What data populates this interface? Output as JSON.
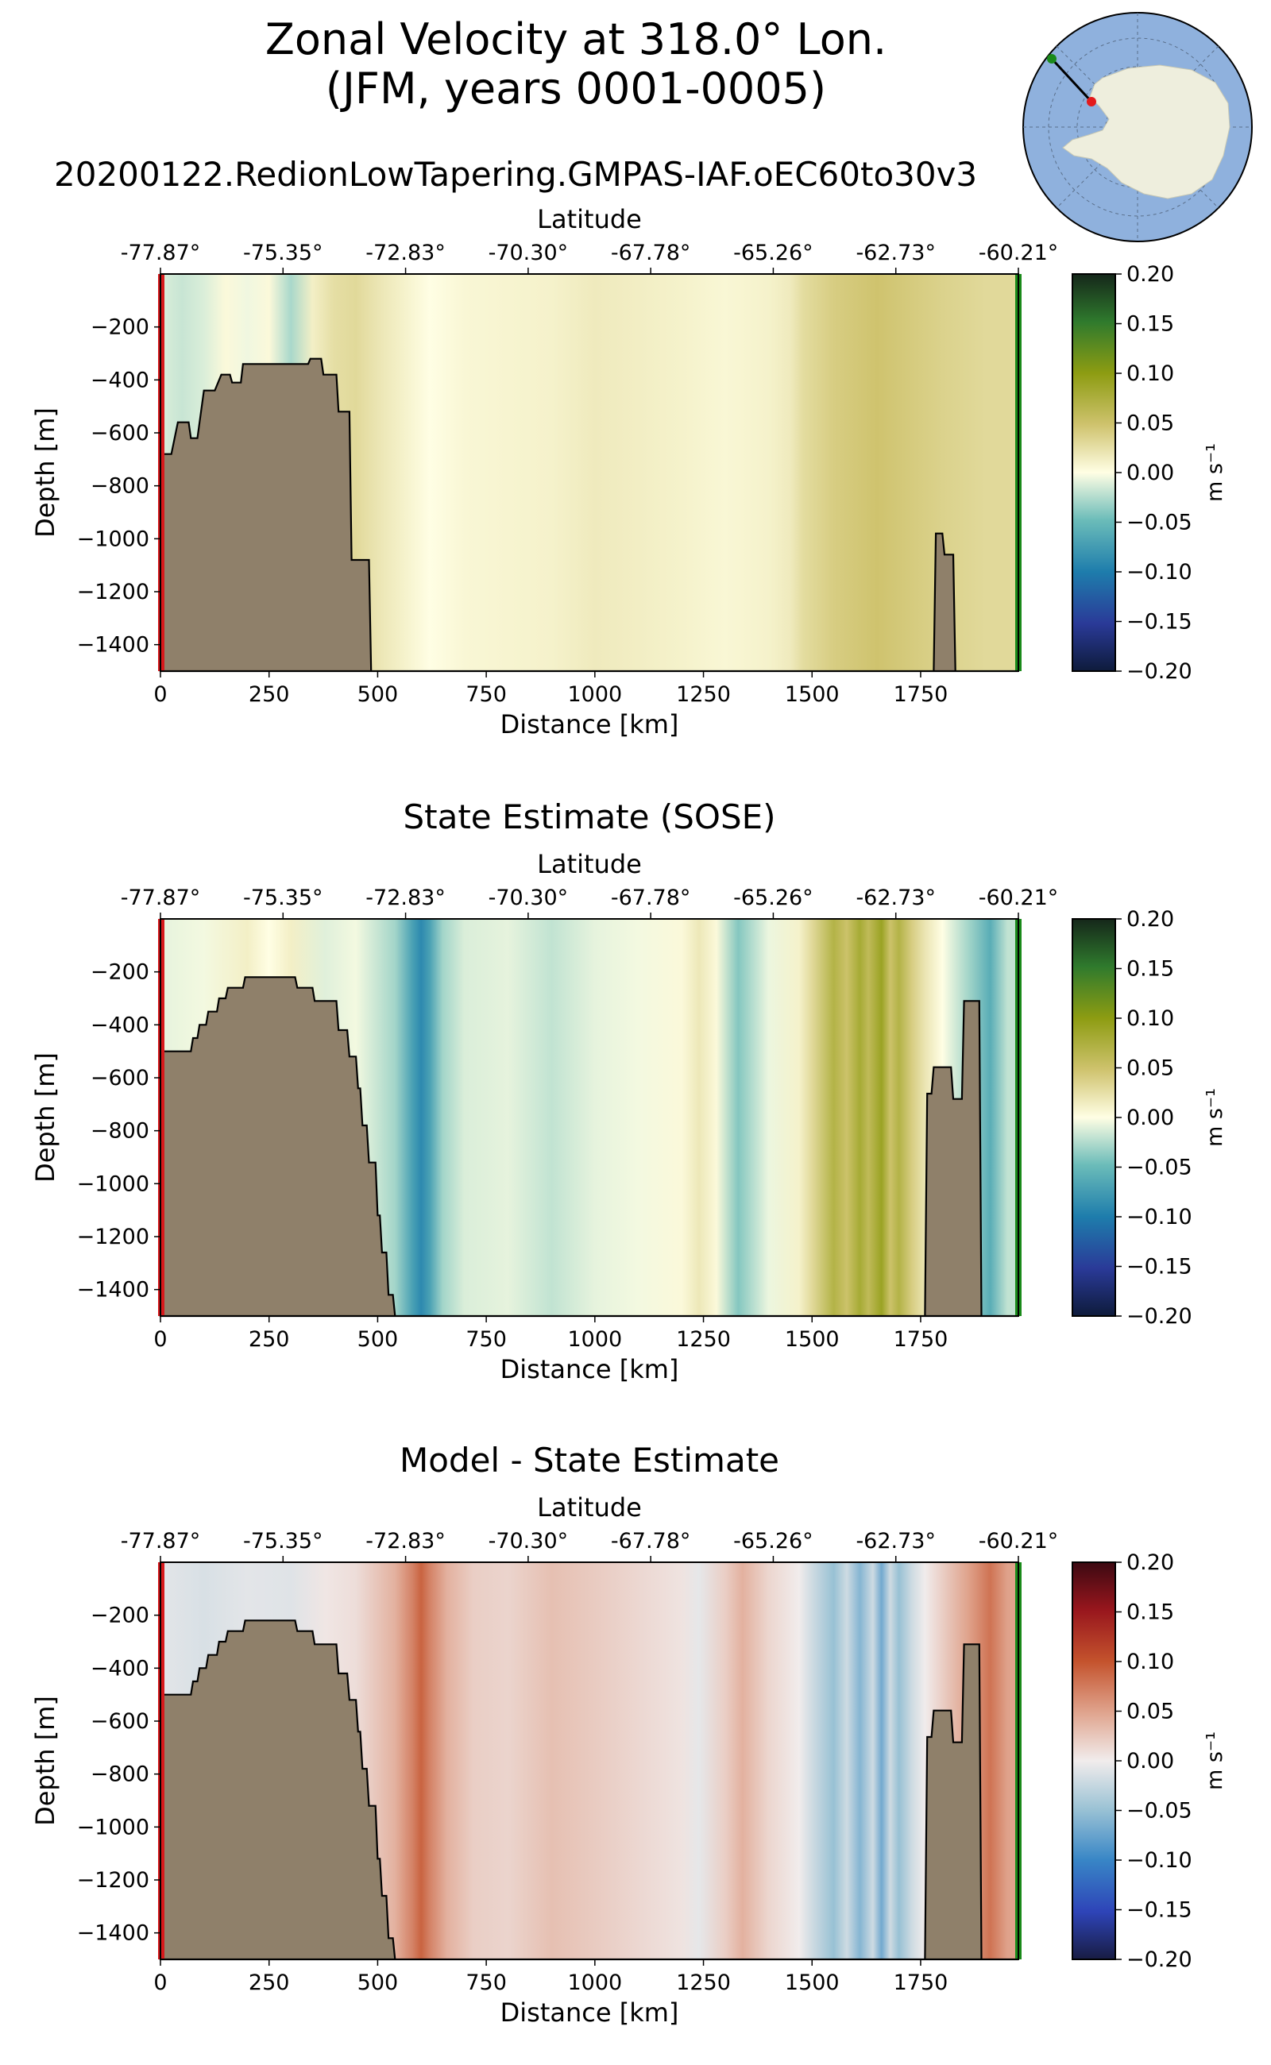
{
  "figure": {
    "title_line1": "Zonal Velocity at 318.0° Lon.",
    "title_line2": "(JFM, years 0001-0005)",
    "run_name": "20200122.RedionLowTapering.GMPAS-IAF.oEC60to30v3",
    "inset_map": "south-polar-inset-map"
  },
  "chart_data": [
    {
      "type": "heatmap",
      "name": "model",
      "title": "",
      "xlabel": "Distance [km]",
      "ylabel": "Depth [m]",
      "top_axis_label": "Latitude",
      "top_ticks": [
        "-77.87°",
        "-75.35°",
        "-72.83°",
        "-70.30°",
        "-67.78°",
        "-65.26°",
        "-62.73°",
        "-60.21°"
      ],
      "xticks": [
        0,
        250,
        500,
        750,
        1000,
        1250,
        1500,
        1750
      ],
      "yticks": [
        -200,
        -400,
        -600,
        -800,
        -1000,
        -1200,
        -1400
      ],
      "xlim": [
        0,
        1975
      ],
      "ylim": [
        -1500,
        0
      ],
      "colormap": "delta",
      "colorbar_label": "m s⁻¹",
      "colorbar_ticks": [
        "0.20",
        "0.15",
        "0.10",
        "0.05",
        "0.00",
        "−0.05",
        "−0.10",
        "−0.15",
        "−0.20"
      ],
      "clim": [
        -0.2,
        0.2
      ],
      "velocity_profile": [
        [
          0,
          -0.012
        ],
        [
          50,
          -0.018
        ],
        [
          100,
          -0.012
        ],
        [
          150,
          0.004
        ],
        [
          200,
          -0.005
        ],
        [
          250,
          0.004
        ],
        [
          300,
          -0.028
        ],
        [
          350,
          0.012
        ],
        [
          400,
          0.026
        ],
        [
          450,
          0.03
        ],
        [
          500,
          0.02
        ],
        [
          560,
          0.01
        ],
        [
          620,
          0.0
        ],
        [
          700,
          0.006
        ],
        [
          800,
          0.008
        ],
        [
          900,
          0.01
        ],
        [
          1000,
          0.016
        ],
        [
          1100,
          0.013
        ],
        [
          1200,
          0.01
        ],
        [
          1300,
          0.006
        ],
        [
          1400,
          0.01
        ],
        [
          1450,
          0.016
        ],
        [
          1480,
          0.028
        ],
        [
          1550,
          0.04
        ],
        [
          1650,
          0.048
        ],
        [
          1700,
          0.044
        ],
        [
          1800,
          0.036
        ],
        [
          1900,
          0.03
        ],
        [
          1975,
          0.03
        ]
      ],
      "bathymetry": [
        [
          0,
          -680
        ],
        [
          25,
          -680
        ],
        [
          40,
          -560
        ],
        [
          65,
          -560
        ],
        [
          70,
          -620
        ],
        [
          85,
          -620
        ],
        [
          100,
          -440
        ],
        [
          125,
          -440
        ],
        [
          140,
          -380
        ],
        [
          160,
          -380
        ],
        [
          165,
          -410
        ],
        [
          185,
          -410
        ],
        [
          190,
          -340
        ],
        [
          340,
          -340
        ],
        [
          345,
          -320
        ],
        [
          370,
          -320
        ],
        [
          375,
          -380
        ],
        [
          405,
          -380
        ],
        [
          410,
          -520
        ],
        [
          435,
          -520
        ],
        [
          440,
          -1080
        ],
        [
          480,
          -1080
        ],
        [
          485,
          -1500
        ],
        [
          1780,
          -1500
        ],
        [
          1785,
          -980
        ],
        [
          1800,
          -980
        ],
        [
          1805,
          -1060
        ],
        [
          1825,
          -1060
        ],
        [
          1830,
          -1500
        ],
        [
          1975,
          -1500
        ]
      ]
    },
    {
      "type": "heatmap",
      "name": "sose",
      "title": "State Estimate (SOSE)",
      "xlabel": "Distance [km]",
      "ylabel": "Depth [m]",
      "top_axis_label": "Latitude",
      "top_ticks": [
        "-77.87°",
        "-75.35°",
        "-72.83°",
        "-70.30°",
        "-67.78°",
        "-65.26°",
        "-62.73°",
        "-60.21°"
      ],
      "xticks": [
        0,
        250,
        500,
        750,
        1000,
        1250,
        1500,
        1750
      ],
      "yticks": [
        -200,
        -400,
        -600,
        -800,
        -1000,
        -1200,
        -1400
      ],
      "xlim": [
        0,
        1975
      ],
      "ylim": [
        -1500,
        0
      ],
      "colormap": "delta",
      "colorbar_label": "m s⁻¹",
      "colorbar_ticks": [
        "0.20",
        "0.15",
        "0.10",
        "0.05",
        "0.00",
        "−0.05",
        "−0.10",
        "−0.15",
        "−0.20"
      ],
      "clim": [
        -0.2,
        0.2
      ],
      "velocity_profile": [
        [
          0,
          -0.008
        ],
        [
          100,
          -0.004
        ],
        [
          200,
          0.012
        ],
        [
          250,
          0.0
        ],
        [
          300,
          0.012
        ],
        [
          380,
          -0.01
        ],
        [
          450,
          -0.004
        ],
        [
          540,
          -0.03
        ],
        [
          580,
          -0.07
        ],
        [
          600,
          -0.09
        ],
        [
          620,
          -0.07
        ],
        [
          650,
          -0.03
        ],
        [
          700,
          -0.012
        ],
        [
          800,
          -0.008
        ],
        [
          900,
          -0.02
        ],
        [
          1000,
          -0.008
        ],
        [
          1100,
          -0.004
        ],
        [
          1200,
          0.004
        ],
        [
          1240,
          0.018
        ],
        [
          1280,
          0.004
        ],
        [
          1330,
          -0.04
        ],
        [
          1400,
          -0.006
        ],
        [
          1470,
          0.01
        ],
        [
          1500,
          0.03
        ],
        [
          1550,
          0.07
        ],
        [
          1580,
          0.05
        ],
        [
          1610,
          0.08
        ],
        [
          1630,
          0.06
        ],
        [
          1660,
          0.09
        ],
        [
          1680,
          0.05
        ],
        [
          1700,
          0.07
        ],
        [
          1730,
          0.04
        ],
        [
          1760,
          0.02
        ],
        [
          1800,
          0.0
        ],
        [
          1860,
          -0.03
        ],
        [
          1910,
          -0.06
        ],
        [
          1950,
          -0.02
        ],
        [
          1975,
          -0.02
        ]
      ],
      "bathymetry": [
        [
          0,
          -500
        ],
        [
          35,
          -500
        ],
        [
          40,
          -500
        ],
        [
          70,
          -500
        ],
        [
          75,
          -450
        ],
        [
          85,
          -450
        ],
        [
          90,
          -400
        ],
        [
          105,
          -400
        ],
        [
          110,
          -350
        ],
        [
          130,
          -350
        ],
        [
          135,
          -300
        ],
        [
          150,
          -300
        ],
        [
          155,
          -260
        ],
        [
          190,
          -260
        ],
        [
          195,
          -220
        ],
        [
          310,
          -220
        ],
        [
          315,
          -260
        ],
        [
          350,
          -260
        ],
        [
          355,
          -310
        ],
        [
          405,
          -310
        ],
        [
          410,
          -420
        ],
        [
          430,
          -420
        ],
        [
          435,
          -520
        ],
        [
          450,
          -520
        ],
        [
          455,
          -640
        ],
        [
          460,
          -640
        ],
        [
          465,
          -780
        ],
        [
          475,
          -780
        ],
        [
          480,
          -920
        ],
        [
          495,
          -920
        ],
        [
          500,
          -1120
        ],
        [
          505,
          -1120
        ],
        [
          510,
          -1260
        ],
        [
          520,
          -1260
        ],
        [
          525,
          -1420
        ],
        [
          535,
          -1420
        ],
        [
          540,
          -1500
        ],
        [
          1760,
          -1500
        ],
        [
          1765,
          -660
        ],
        [
          1775,
          -660
        ],
        [
          1780,
          -560
        ],
        [
          1820,
          -560
        ],
        [
          1825,
          -680
        ],
        [
          1845,
          -680
        ],
        [
          1850,
          -310
        ],
        [
          1885,
          -310
        ],
        [
          1890,
          -1500
        ],
        [
          1975,
          -1500
        ]
      ]
    },
    {
      "type": "heatmap",
      "name": "difference",
      "title": "Model - State Estimate",
      "xlabel": "Distance [km]",
      "ylabel": "Depth [m]",
      "top_axis_label": "Latitude",
      "top_ticks": [
        "-77.87°",
        "-75.35°",
        "-72.83°",
        "-70.30°",
        "-67.78°",
        "-65.26°",
        "-62.73°",
        "-60.21°"
      ],
      "xticks": [
        0,
        250,
        500,
        750,
        1000,
        1250,
        1500,
        1750
      ],
      "yticks": [
        -200,
        -400,
        -600,
        -800,
        -1000,
        -1200,
        -1400
      ],
      "xlim": [
        0,
        1975
      ],
      "ylim": [
        -1500,
        0
      ],
      "colormap": "balance",
      "colorbar_label": "m s⁻¹",
      "colorbar_ticks": [
        "0.20",
        "0.15",
        "0.10",
        "0.05",
        "0.00",
        "−0.05",
        "−0.10",
        "−0.15",
        "−0.20"
      ],
      "clim": [
        -0.2,
        0.2
      ],
      "velocity_profile": [
        [
          0,
          -0.008
        ],
        [
          100,
          -0.014
        ],
        [
          200,
          -0.008
        ],
        [
          300,
          -0.01
        ],
        [
          380,
          0.004
        ],
        [
          450,
          0.01
        ],
        [
          540,
          0.04
        ],
        [
          580,
          0.07
        ],
        [
          600,
          0.09
        ],
        [
          620,
          0.07
        ],
        [
          660,
          0.04
        ],
        [
          720,
          0.02
        ],
        [
          800,
          0.016
        ],
        [
          900,
          0.03
        ],
        [
          1000,
          0.022
        ],
        [
          1100,
          0.014
        ],
        [
          1200,
          0.006
        ],
        [
          1240,
          -0.006
        ],
        [
          1300,
          0.02
        ],
        [
          1340,
          0.04
        ],
        [
          1400,
          0.015
        ],
        [
          1470,
          0.0
        ],
        [
          1500,
          -0.02
        ],
        [
          1550,
          -0.05
        ],
        [
          1580,
          -0.02
        ],
        [
          1610,
          -0.06
        ],
        [
          1640,
          -0.02
        ],
        [
          1660,
          -0.07
        ],
        [
          1680,
          -0.02
        ],
        [
          1700,
          -0.05
        ],
        [
          1730,
          -0.02
        ],
        [
          1760,
          0.0
        ],
        [
          1800,
          0.02
        ],
        [
          1860,
          0.05
        ],
        [
          1910,
          0.08
        ],
        [
          1950,
          0.05
        ],
        [
          1975,
          0.05
        ]
      ],
      "bathymetry": [
        [
          0,
          -500
        ],
        [
          35,
          -500
        ],
        [
          40,
          -500
        ],
        [
          70,
          -500
        ],
        [
          75,
          -450
        ],
        [
          85,
          -450
        ],
        [
          90,
          -400
        ],
        [
          105,
          -400
        ],
        [
          110,
          -350
        ],
        [
          130,
          -350
        ],
        [
          135,
          -300
        ],
        [
          150,
          -300
        ],
        [
          155,
          -260
        ],
        [
          190,
          -260
        ],
        [
          195,
          -220
        ],
        [
          310,
          -220
        ],
        [
          315,
          -260
        ],
        [
          350,
          -260
        ],
        [
          355,
          -310
        ],
        [
          405,
          -310
        ],
        [
          410,
          -420
        ],
        [
          430,
          -420
        ],
        [
          435,
          -520
        ],
        [
          450,
          -520
        ],
        [
          455,
          -640
        ],
        [
          460,
          -640
        ],
        [
          465,
          -780
        ],
        [
          475,
          -780
        ],
        [
          480,
          -920
        ],
        [
          495,
          -920
        ],
        [
          500,
          -1120
        ],
        [
          505,
          -1120
        ],
        [
          510,
          -1260
        ],
        [
          520,
          -1260
        ],
        [
          525,
          -1420
        ],
        [
          535,
          -1420
        ],
        [
          540,
          -1500
        ],
        [
          1760,
          -1500
        ],
        [
          1765,
          -660
        ],
        [
          1775,
          -660
        ],
        [
          1780,
          -560
        ],
        [
          1820,
          -560
        ],
        [
          1825,
          -680
        ],
        [
          1845,
          -680
        ],
        [
          1850,
          -310
        ],
        [
          1885,
          -310
        ],
        [
          1890,
          -1500
        ],
        [
          1975,
          -1500
        ]
      ]
    }
  ]
}
